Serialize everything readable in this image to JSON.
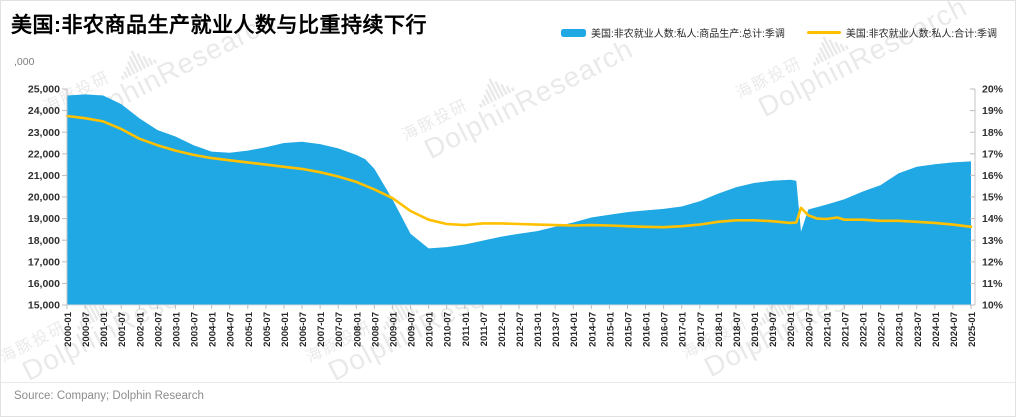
{
  "title": "美国:非农商品生产就业人数与比重持续下行",
  "source": "Source: Company; Dolphin Research",
  "watermark": {
    "cn": "海豚投研",
    "en": "DolphinResearch"
  },
  "legend": [
    {
      "label": "美国:非农就业人数:私人:商品生产:总计:季调",
      "color": "#1fa8e4",
      "type": "area"
    },
    {
      "label": "美国:非农就业人数:私人:合计:季调",
      "color": "#ffc000",
      "type": "line"
    }
  ],
  "chart_data": {
    "type": "area",
    "title": "美国:非农商品生产就业人数与比重持续下行",
    "unit_label": ",000",
    "grid": false,
    "legend_position": "top-right",
    "left_axis": {
      "min": 15000,
      "max": 25000,
      "step": 1000,
      "tick_labels": [
        "25,000",
        "24,000",
        "23,000",
        "22,000",
        "21,000",
        "20,000",
        "19,000",
        "18,000",
        "17,000",
        "16,000",
        "15,000"
      ]
    },
    "right_axis": {
      "min": 10,
      "max": 20,
      "step": 1,
      "tick_labels": [
        "20%",
        "19%",
        "18%",
        "17%",
        "16%",
        "15%",
        "14%",
        "13%",
        "12%",
        "11%",
        "10%"
      ]
    },
    "x_axis": {
      "t_min": 2000,
      "t_max": 2025,
      "tick_labels": [
        "2000-01",
        "2000-07",
        "2001-01",
        "2001-07",
        "2002-01",
        "2002-07",
        "2003-01",
        "2003-07",
        "2004-01",
        "2004-07",
        "2005-01",
        "2005-07",
        "2006-01",
        "2006-07",
        "2007-01",
        "2007-07",
        "2008-01",
        "2008-07",
        "2009-01",
        "2009-07",
        "2010-01",
        "2010-07",
        "2011-01",
        "2011-07",
        "2012-01",
        "2012-07",
        "2013-01",
        "2013-07",
        "2014-01",
        "2014-07",
        "2015-01",
        "2015-07",
        "2016-01",
        "2016-07",
        "2017-01",
        "2017-07",
        "2018-01",
        "2018-07",
        "2019-01",
        "2019-07",
        "2020-01",
        "2020-07",
        "2021-01",
        "2021-07",
        "2022-01",
        "2022-07",
        "2023-01",
        "2023-07",
        "2024-01",
        "2024-07",
        "2025-01"
      ]
    },
    "series": [
      {
        "name": "美国:非农就业人数:私人:商品生产:总计:季调",
        "axis": "left",
        "style": "area",
        "color": "#1fa8e4",
        "points": [
          [
            2000,
            24700
          ],
          [
            2000.5,
            24750
          ],
          [
            2001,
            24700
          ],
          [
            2001.5,
            24300
          ],
          [
            2002,
            23650
          ],
          [
            2002.5,
            23100
          ],
          [
            2003,
            22800
          ],
          [
            2003.5,
            22400
          ],
          [
            2004,
            22100
          ],
          [
            2004.5,
            22050
          ],
          [
            2005,
            22150
          ],
          [
            2005.5,
            22300
          ],
          [
            2006,
            22500
          ],
          [
            2006.5,
            22560
          ],
          [
            2007,
            22450
          ],
          [
            2007.5,
            22250
          ],
          [
            2008,
            21950
          ],
          [
            2008.25,
            21750
          ],
          [
            2008.5,
            21300
          ],
          [
            2008.75,
            20600
          ],
          [
            2009,
            19900
          ],
          [
            2009.5,
            18300
          ],
          [
            2010,
            17620
          ],
          [
            2010.5,
            17680
          ],
          [
            2011,
            17800
          ],
          [
            2011.5,
            17980
          ],
          [
            2012,
            18160
          ],
          [
            2012.5,
            18300
          ],
          [
            2013,
            18420
          ],
          [
            2013.5,
            18620
          ],
          [
            2014,
            18820
          ],
          [
            2014.5,
            19050
          ],
          [
            2015,
            19180
          ],
          [
            2015.5,
            19300
          ],
          [
            2016,
            19380
          ],
          [
            2016.5,
            19450
          ],
          [
            2017,
            19560
          ],
          [
            2017.5,
            19800
          ],
          [
            2018,
            20150
          ],
          [
            2018.5,
            20450
          ],
          [
            2019,
            20650
          ],
          [
            2019.5,
            20750
          ],
          [
            2020,
            20800
          ],
          [
            2020.17,
            20750
          ],
          [
            2020.3,
            18400
          ],
          [
            2020.5,
            19420
          ],
          [
            2021,
            19650
          ],
          [
            2021.5,
            19900
          ],
          [
            2022,
            20250
          ],
          [
            2022.5,
            20550
          ],
          [
            2023,
            21100
          ],
          [
            2023.5,
            21400
          ],
          [
            2024,
            21520
          ],
          [
            2024.5,
            21600
          ],
          [
            2025,
            21650
          ]
        ]
      },
      {
        "name": "美国:非农就业人数:私人:合计:季调",
        "axis": "right",
        "style": "line",
        "color": "#ffc000",
        "points": [
          [
            2000,
            18.75
          ],
          [
            2000.5,
            18.65
          ],
          [
            2001,
            18.5
          ],
          [
            2001.5,
            18.15
          ],
          [
            2002,
            17.7
          ],
          [
            2002.5,
            17.4
          ],
          [
            2003,
            17.15
          ],
          [
            2003.5,
            16.95
          ],
          [
            2004,
            16.8
          ],
          [
            2004.5,
            16.7
          ],
          [
            2005,
            16.6
          ],
          [
            2005.5,
            16.5
          ],
          [
            2006,
            16.4
          ],
          [
            2006.5,
            16.3
          ],
          [
            2007,
            16.15
          ],
          [
            2007.5,
            15.95
          ],
          [
            2008,
            15.7
          ],
          [
            2008.5,
            15.35
          ],
          [
            2009,
            14.95
          ],
          [
            2009.5,
            14.35
          ],
          [
            2010,
            13.95
          ],
          [
            2010.5,
            13.75
          ],
          [
            2011,
            13.7
          ],
          [
            2011.5,
            13.78
          ],
          [
            2012,
            13.78
          ],
          [
            2012.5,
            13.75
          ],
          [
            2013,
            13.72
          ],
          [
            2013.5,
            13.7
          ],
          [
            2014,
            13.68
          ],
          [
            2014.5,
            13.7
          ],
          [
            2015,
            13.68
          ],
          [
            2015.5,
            13.65
          ],
          [
            2016,
            13.62
          ],
          [
            2016.5,
            13.6
          ],
          [
            2017,
            13.65
          ],
          [
            2017.5,
            13.72
          ],
          [
            2018,
            13.85
          ],
          [
            2018.5,
            13.92
          ],
          [
            2019,
            13.92
          ],
          [
            2019.5,
            13.88
          ],
          [
            2020,
            13.8
          ],
          [
            2020.17,
            13.82
          ],
          [
            2020.3,
            14.5
          ],
          [
            2020.5,
            14.15
          ],
          [
            2020.75,
            14.0
          ],
          [
            2021,
            13.98
          ],
          [
            2021.3,
            14.05
          ],
          [
            2021.5,
            13.95
          ],
          [
            2022,
            13.95
          ],
          [
            2022.5,
            13.9
          ],
          [
            2023,
            13.9
          ],
          [
            2023.5,
            13.85
          ],
          [
            2024,
            13.8
          ],
          [
            2024.5,
            13.72
          ],
          [
            2025,
            13.62
          ]
        ]
      }
    ]
  }
}
